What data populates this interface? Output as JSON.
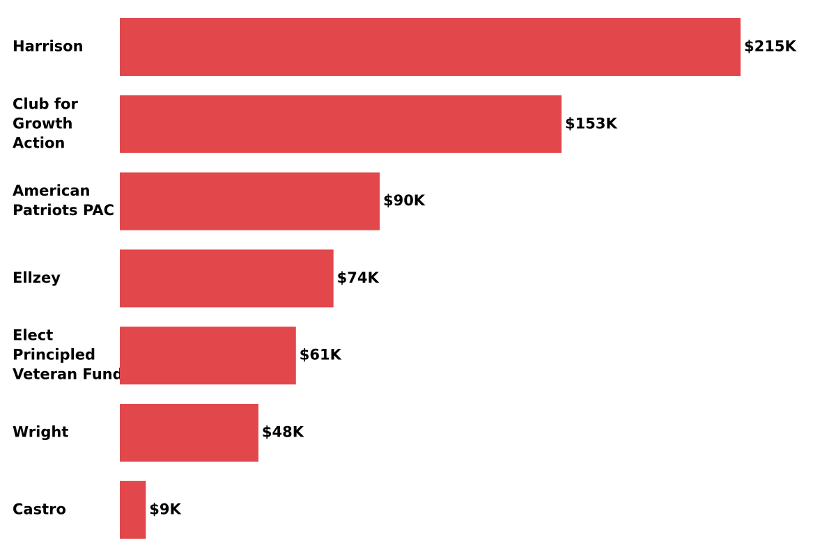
{
  "chart_data": {
    "type": "bar",
    "orientation": "horizontal",
    "categories": [
      [
        "Harrison"
      ],
      [
        "Club for",
        "Growth",
        "Action"
      ],
      [
        "American",
        "Patriots PAC"
      ],
      [
        "Ellzey"
      ],
      [
        "Elect",
        "Principled",
        "Veteran Fund"
      ],
      [
        "Wright"
      ],
      [
        "Castro"
      ]
    ],
    "values": [
      215,
      153,
      90,
      74,
      61,
      48,
      9
    ],
    "value_labels": [
      "$215K",
      "$153K",
      "$90K",
      "$74K",
      "$61K",
      "$48K",
      "$9K"
    ],
    "value_unit": "thousand dollars",
    "xlim": [
      0,
      215
    ],
    "bar_color": "#e2474b",
    "grid": false,
    "legend": "none"
  }
}
